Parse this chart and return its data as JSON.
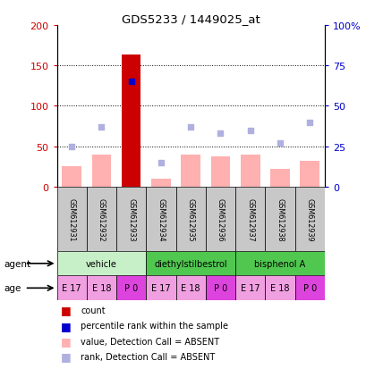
{
  "title": "GDS5233 / 1449025_at",
  "samples": [
    "GSM612931",
    "GSM612932",
    "GSM612933",
    "GSM612934",
    "GSM612935",
    "GSM612936",
    "GSM612937",
    "GSM612938",
    "GSM612939"
  ],
  "count_values": [
    25,
    40,
    163,
    10,
    40,
    37,
    40,
    22,
    32
  ],
  "count_absent": [
    true,
    true,
    false,
    true,
    true,
    true,
    true,
    true,
    true
  ],
  "percentile_rank": [
    null,
    null,
    65,
    null,
    null,
    null,
    null,
    null,
    null
  ],
  "rank_absent": [
    25,
    37,
    null,
    15,
    37,
    33,
    35,
    27,
    40
  ],
  "ylim_left": [
    0,
    200
  ],
  "ylim_right": [
    0,
    100
  ],
  "yticks_left": [
    0,
    50,
    100,
    150,
    200
  ],
  "yticks_right": [
    0,
    25,
    50,
    75,
    100
  ],
  "ytick_labels_left": [
    "0",
    "50",
    "100",
    "150",
    "200"
  ],
  "ytick_labels_right": [
    "0",
    "25",
    "50",
    "75",
    "100%"
  ],
  "agent_groups": [
    {
      "label": "vehicle",
      "start": 0,
      "end": 3,
      "color": "#c8f0c8"
    },
    {
      "label": "diethylstilbestrol",
      "start": 3,
      "end": 6,
      "color": "#50c850"
    },
    {
      "label": "bisphenol A",
      "start": 6,
      "end": 9,
      "color": "#50c850"
    }
  ],
  "age_labels": [
    "E 17",
    "E 18",
    "P 0",
    "E 17",
    "E 18",
    "P 0",
    "E 17",
    "E 18",
    "P 0"
  ],
  "age_color_e": "#f0a0e0",
  "age_color_p": "#dd44dd",
  "bar_color_present": "#cc0000",
  "bar_color_absent": "#ffb0b0",
  "rank_absent_color": "#b0b0e0",
  "percentile_color": "#0000cc",
  "sample_box_color": "#c8c8c8",
  "left_axis_color": "#cc0000",
  "right_axis_color": "#0000cc",
  "legend_items": [
    {
      "color": "#cc0000",
      "label": "count"
    },
    {
      "color": "#0000cc",
      "label": "percentile rank within the sample"
    },
    {
      "color": "#ffb0b0",
      "label": "value, Detection Call = ABSENT"
    },
    {
      "color": "#b0b0e0",
      "label": "rank, Detection Call = ABSENT"
    }
  ]
}
